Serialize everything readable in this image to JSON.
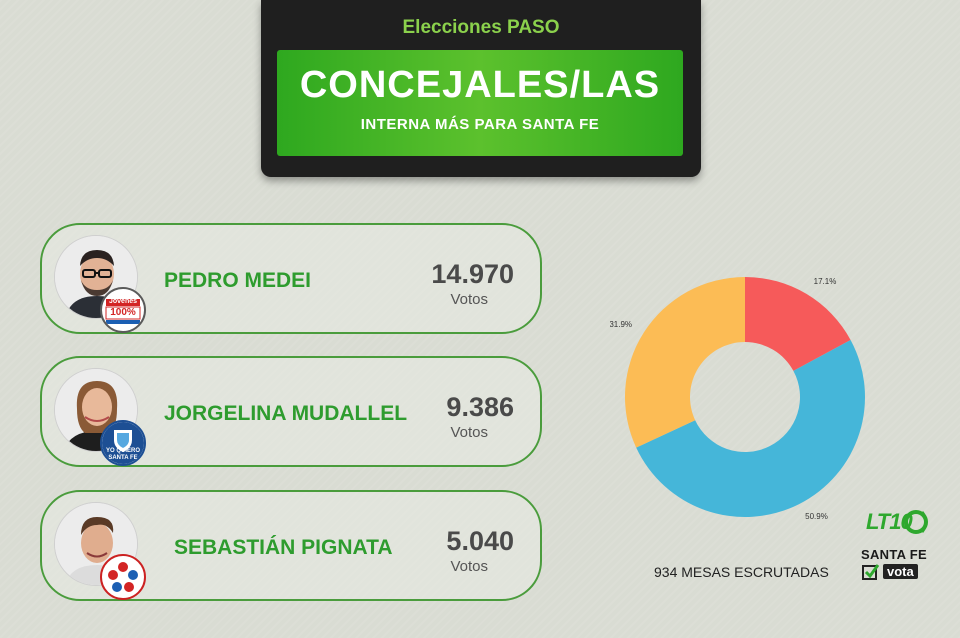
{
  "header": {
    "subtitle": "Elecciones PASO",
    "title": "CONCEJALES/LAS",
    "caption": "INTERNA MÁS PARA SANTA FE"
  },
  "candidates": [
    {
      "name": "PEDRO MEDEI",
      "votes": "14.970",
      "votes_label": "Votos",
      "badge_line1": "Jóvenes",
      "badge_line2": "100%"
    },
    {
      "name": "JORGELINA MUDALLEL",
      "votes": "9.386",
      "votes_label": "Votos",
      "badge_line1": "YO QUIERO",
      "badge_line2": "SANTA FE"
    },
    {
      "name": "SEBASTIÁN PIGNATA",
      "votes": "5.040",
      "votes_label": "Votos"
    }
  ],
  "chart_data": {
    "type": "pie",
    "variant": "donut",
    "slices": [
      {
        "label": "PEDRO MEDEI",
        "value": 50.9,
        "display": "50.9%",
        "color": "#45b6d9"
      },
      {
        "label": "JORGELINA MUDALLEL",
        "value": 31.9,
        "display": "31.9%",
        "color": "#fcbc55"
      },
      {
        "label": "SEBASTIÁN PIGNATA",
        "value": 17.1,
        "display": "17.1%",
        "color": "#f65a5a"
      }
    ],
    "start_angle_deg": 0,
    "direction": "counterclockwise"
  },
  "footer": {
    "mesas": "934 MESAS ESCRUTADAS",
    "logo_lt": "LT10",
    "logo_sf": "SANTA FE",
    "logo_vota": "vota"
  },
  "colors": {
    "accent_green": "#2e9c2e",
    "header_dark": "#1f1f1f"
  }
}
